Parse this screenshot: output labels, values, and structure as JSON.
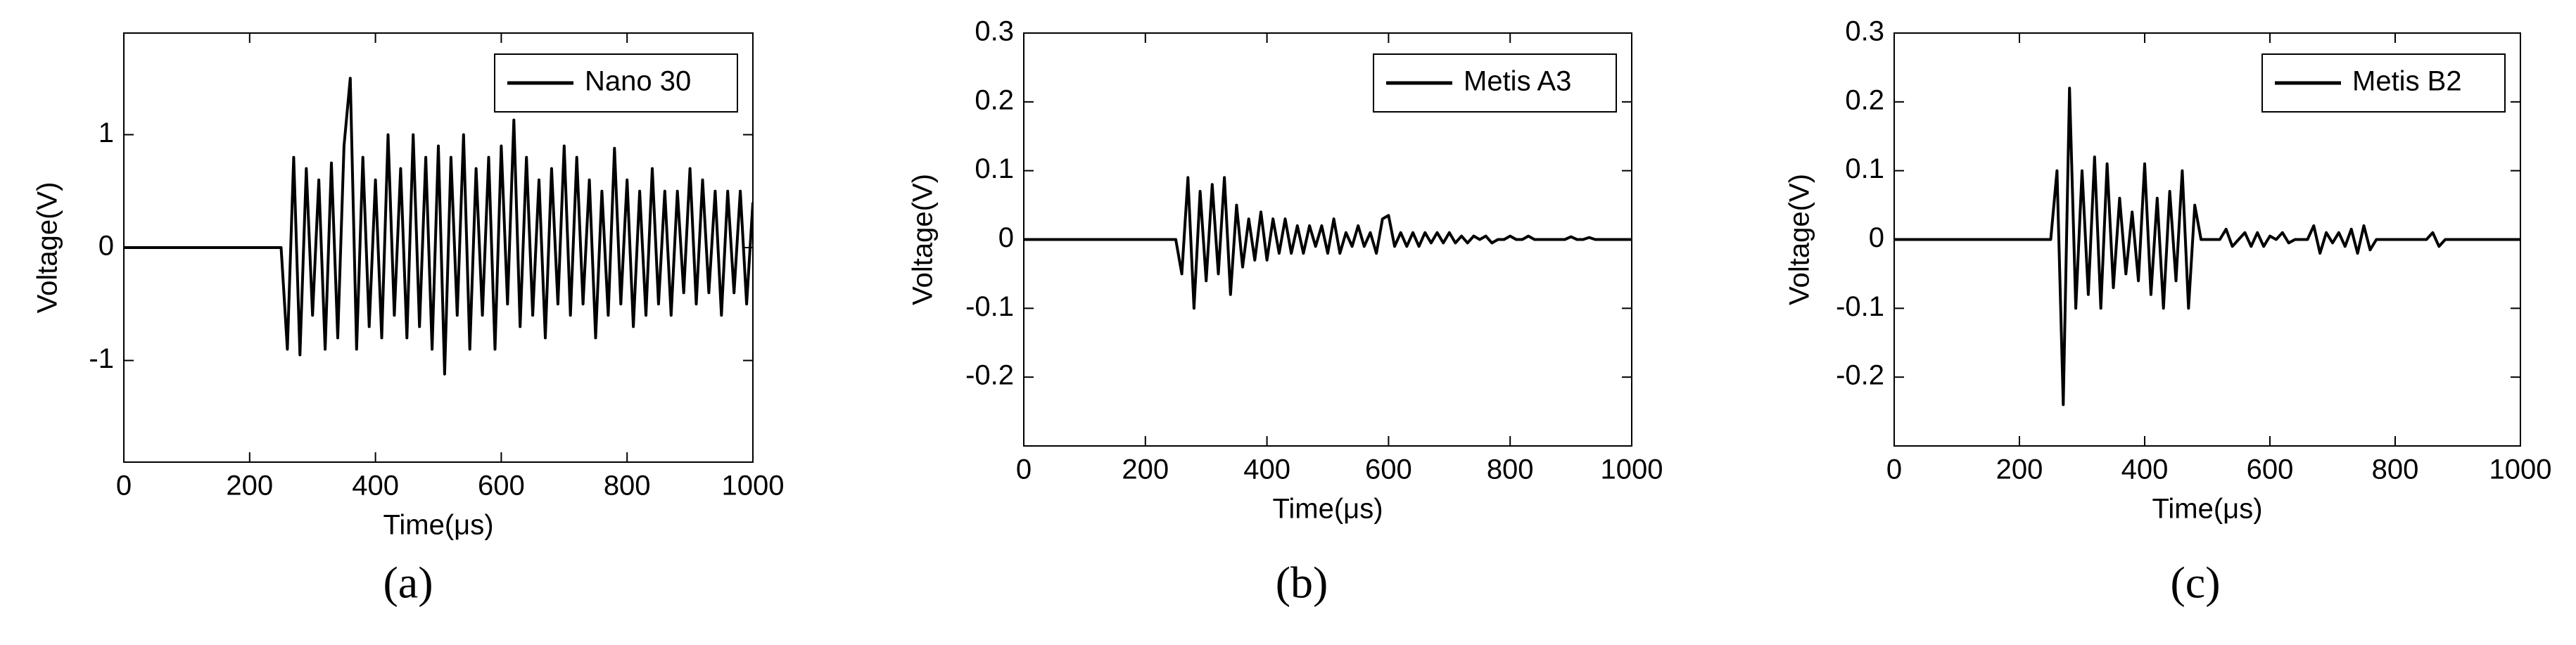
{
  "chart_data": [
    {
      "type": "line",
      "caption": "(a)",
      "xlabel": "Time(μs)",
      "ylabel": "Voltage(V)",
      "x": [
        0,
        250,
        260,
        270,
        280,
        290,
        300,
        310,
        320,
        330,
        340,
        350,
        360,
        370,
        380,
        390,
        400,
        410,
        420,
        430,
        440,
        450,
        460,
        470,
        480,
        490,
        500,
        510,
        520,
        530,
        540,
        550,
        560,
        570,
        580,
        590,
        600,
        610,
        620,
        630,
        640,
        650,
        660,
        670,
        680,
        690,
        700,
        710,
        720,
        730,
        740,
        750,
        760,
        770,
        780,
        790,
        800,
        810,
        820,
        830,
        840,
        850,
        860,
        870,
        880,
        890,
        900,
        910,
        920,
        930,
        940,
        950,
        960,
        970,
        980,
        990,
        1000
      ],
      "series": [
        {
          "name": "Nano 30",
          "color": "#000000",
          "values": [
            0,
            0,
            -0.9,
            0.8,
            -0.95,
            0.7,
            -0.6,
            0.6,
            -0.9,
            0.75,
            -0.8,
            0.9,
            1.5,
            -0.9,
            0.8,
            -0.7,
            0.6,
            -0.8,
            1.0,
            -0.6,
            0.7,
            -0.8,
            1.0,
            -0.7,
            0.8,
            -0.9,
            0.9,
            -1.12,
            0.8,
            -0.6,
            1.0,
            -0.9,
            0.7,
            -0.6,
            0.8,
            -0.9,
            0.9,
            -0.5,
            1.13,
            -0.7,
            0.8,
            -0.6,
            0.6,
            -0.8,
            0.7,
            -0.5,
            0.9,
            -0.6,
            0.8,
            -0.5,
            0.6,
            -0.8,
            0.5,
            -0.6,
            0.88,
            -0.5,
            0.6,
            -0.7,
            0.5,
            -0.6,
            0.7,
            -0.5,
            0.5,
            -0.6,
            0.5,
            -0.4,
            0.7,
            -0.5,
            0.6,
            -0.4,
            0.5,
            -0.6,
            0.5,
            -0.4,
            0.5,
            -0.5,
            0.4
          ]
        }
      ],
      "xlim": [
        0,
        1000
      ],
      "ylim": [
        -1.9,
        1.9
      ],
      "xticks": [
        0,
        200,
        400,
        600,
        800,
        1000
      ],
      "yticks": [
        -1,
        0,
        1
      ],
      "legend": "upper right"
    },
    {
      "type": "line",
      "caption": "(b)",
      "xlabel": "Time(μs)",
      "ylabel": "Voltage(V)",
      "x": [
        0,
        250,
        260,
        270,
        280,
        290,
        300,
        310,
        320,
        330,
        340,
        350,
        360,
        370,
        380,
        390,
        400,
        410,
        420,
        430,
        440,
        450,
        460,
        470,
        480,
        490,
        500,
        510,
        520,
        530,
        540,
        550,
        560,
        570,
        580,
        590,
        600,
        610,
        620,
        630,
        640,
        650,
        660,
        670,
        680,
        690,
        700,
        710,
        720,
        730,
        740,
        750,
        760,
        770,
        780,
        790,
        800,
        810,
        820,
        830,
        840,
        850,
        860,
        870,
        880,
        890,
        900,
        910,
        920,
        930,
        940,
        950,
        960,
        970,
        980,
        990,
        1000
      ],
      "series": [
        {
          "name": "Metis A3",
          "color": "#000000",
          "values": [
            0,
            0,
            -0.05,
            0.09,
            -0.1,
            0.07,
            -0.06,
            0.08,
            -0.05,
            0.09,
            -0.08,
            0.05,
            -0.04,
            0.03,
            -0.03,
            0.04,
            -0.03,
            0.03,
            -0.02,
            0.03,
            -0.02,
            0.02,
            -0.02,
            0.02,
            -0.01,
            0.02,
            -0.02,
            0.03,
            -0.02,
            0.01,
            -0.01,
            0.02,
            -0.01,
            0.01,
            -0.02,
            0.03,
            0.035,
            -0.01,
            0.01,
            -0.01,
            0.01,
            -0.01,
            0.01,
            -0.005,
            0.01,
            -0.005,
            0.01,
            -0.005,
            0.005,
            -0.005,
            0.005,
            0,
            0.005,
            -0.005,
            0,
            0,
            0.005,
            0,
            0,
            0.005,
            0,
            0,
            0,
            0,
            0,
            0,
            0.004,
            0,
            0,
            0.003,
            0,
            0,
            0,
            0,
            0,
            0,
            0
          ]
        }
      ],
      "xlim": [
        0,
        1000
      ],
      "ylim": [
        -0.3,
        0.3
      ],
      "xticks": [
        0,
        200,
        400,
        600,
        800,
        1000
      ],
      "yticks": [
        -0.2,
        -0.1,
        0,
        0.1,
        0.2,
        0.3
      ],
      "legend": "upper right"
    },
    {
      "type": "line",
      "caption": "(c)",
      "xlabel": "Time(μs)",
      "ylabel": "Voltage(V)",
      "x": [
        0,
        250,
        260,
        270,
        280,
        290,
        300,
        310,
        320,
        330,
        340,
        350,
        360,
        370,
        380,
        390,
        400,
        410,
        420,
        430,
        440,
        450,
        460,
        470,
        480,
        490,
        500,
        510,
        520,
        530,
        540,
        550,
        560,
        570,
        580,
        590,
        600,
        610,
        620,
        630,
        640,
        650,
        660,
        670,
        680,
        690,
        700,
        710,
        720,
        730,
        740,
        750,
        760,
        770,
        780,
        790,
        800,
        810,
        820,
        830,
        840,
        850,
        860,
        870,
        880,
        890,
        900,
        910,
        920,
        930,
        940,
        950,
        960,
        970,
        980,
        990,
        1000
      ],
      "series": [
        {
          "name": "Metis B2",
          "color": "#000000",
          "values": [
            0,
            0,
            0.1,
            -0.24,
            0.22,
            -0.1,
            0.1,
            -0.08,
            0.12,
            -0.1,
            0.11,
            -0.07,
            0.06,
            -0.05,
            0.04,
            -0.06,
            0.11,
            -0.08,
            0.06,
            -0.1,
            0.07,
            -0.06,
            0.1,
            -0.1,
            0.05,
            0,
            0,
            0,
            0,
            0.015,
            -0.01,
            0,
            0.01,
            -0.01,
            0.01,
            -0.01,
            0.005,
            0,
            0.01,
            -0.005,
            0,
            0,
            0,
            0.02,
            -0.02,
            0.01,
            -0.005,
            0.01,
            -0.01,
            0.015,
            -0.02,
            0.02,
            -0.015,
            0,
            0,
            0,
            0,
            0,
            0,
            0,
            0,
            0,
            0.01,
            -0.01,
            0,
            0,
            0,
            0,
            0,
            0,
            0,
            0,
            0,
            0,
            0,
            0,
            0
          ]
        }
      ],
      "xlim": [
        0,
        1000
      ],
      "ylim": [
        -0.3,
        0.3
      ],
      "xticks": [
        0,
        200,
        400,
        600,
        800,
        1000
      ],
      "yticks": [
        -0.2,
        -0.1,
        0,
        0.1,
        0.2,
        0.3
      ],
      "legend": "upper right"
    }
  ]
}
